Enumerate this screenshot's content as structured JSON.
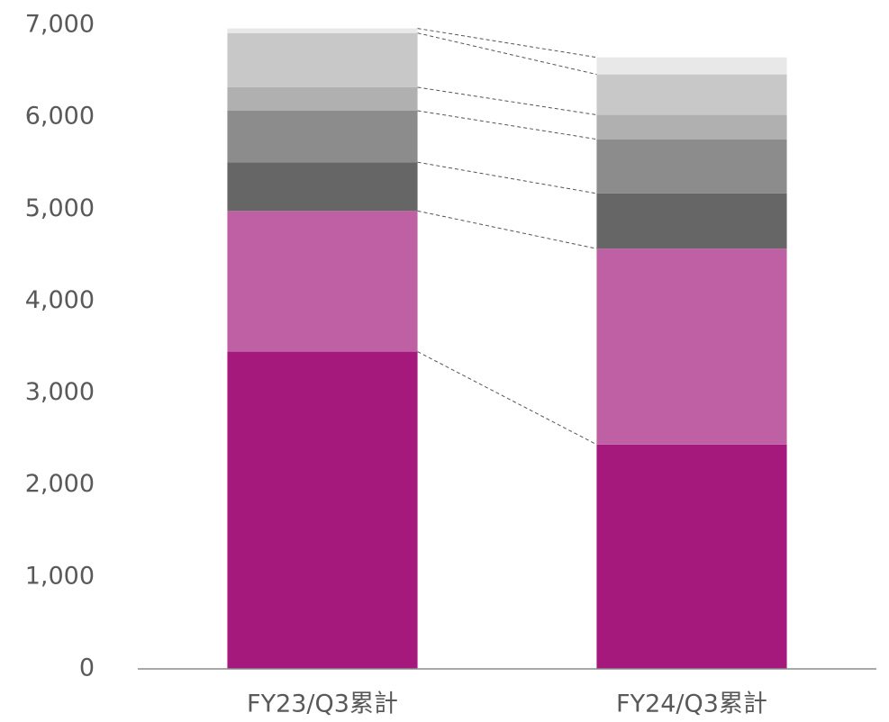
{
  "chart_data": {
    "type": "stacked_bar",
    "categories": [
      "FY23/Q3累計",
      "FY24/Q3累計"
    ],
    "series": [
      {
        "color": "#a5197c",
        "values": [
          3450,
          2440
        ]
      },
      {
        "color": "#c060a4",
        "values": [
          1530,
          2130
        ]
      },
      {
        "color": "#666666",
        "values": [
          530,
          600
        ]
      },
      {
        "color": "#8c8c8c",
        "values": [
          560,
          590
        ]
      },
      {
        "color": "#b0b0b0",
        "values": [
          255,
          265
        ]
      },
      {
        "color": "#c8c8c8",
        "values": [
          590,
          440
        ]
      },
      {
        "color": "#e8e8e8",
        "values": [
          50,
          185
        ]
      }
    ],
    "ylim": [
      0,
      7000
    ],
    "yticks": [
      0,
      {
        "value": 1000,
        "label": "1,000"
      },
      {
        "value": 2000,
        "label": "2,000"
      },
      {
        "value": 3000,
        "label": "3,000"
      },
      {
        "value": 4000,
        "label": "4,000"
      },
      {
        "value": 5000,
        "label": "5,000"
      },
      {
        "value": 6000,
        "label": "6,000"
      },
      {
        "value": 7000,
        "label": "7,000"
      }
    ],
    "grid": false
  }
}
